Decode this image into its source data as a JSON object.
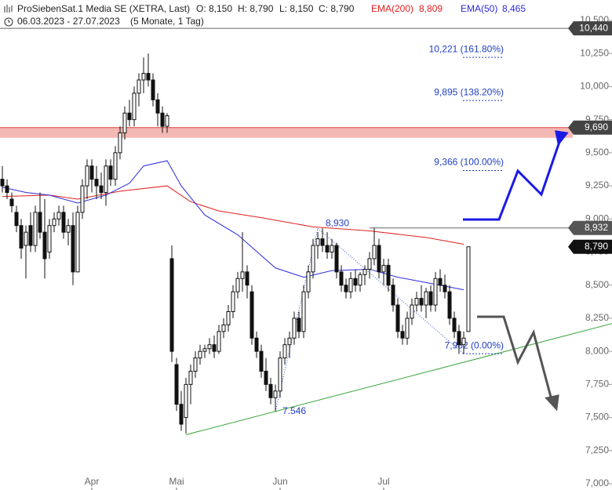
{
  "header": {
    "title": "ProSiebenSat.1 Media SE (XETRA, Last)",
    "open": "O: 8,150",
    "high": "H: 8,790",
    "low": "L: 8,150",
    "close": "C: 8,790",
    "ema200_value": "8,809",
    "ema50_value": "8,465",
    "period": "06.03.2023 - 27.07.2023",
    "span": "(5 Monate, 1 Tag)"
  },
  "chart_data": {
    "type": "candlestick",
    "xlim": [
      -0.5,
      129.5
    ],
    "ylim": [
      7.0,
      10.5
    ],
    "xticks": [
      {
        "value": 19,
        "label": "Apr"
      },
      {
        "value": 37,
        "label": "Mai"
      },
      {
        "value": 59,
        "label": "Jun"
      },
      {
        "value": 81,
        "label": "Jul"
      }
    ],
    "yticks": [
      {
        "value": 7.0,
        "label": "7,000"
      },
      {
        "value": 7.25,
        "label": "7,250"
      },
      {
        "value": 7.5,
        "label": "7,500"
      },
      {
        "value": 7.75,
        "label": "7,750"
      },
      {
        "value": 8.0,
        "label": "8,000"
      },
      {
        "value": 8.25,
        "label": "8,250"
      },
      {
        "value": 8.5,
        "label": "8,500"
      },
      {
        "value": 8.75,
        "label": "8,750"
      },
      {
        "value": 9.0,
        "label": "9,000"
      },
      {
        "value": 9.25,
        "label": "9,250"
      },
      {
        "value": 9.5,
        "label": "9,500"
      },
      {
        "value": 9.75,
        "label": "9,750"
      },
      {
        "value": 10.0,
        "label": "10,000"
      },
      {
        "value": 10.25,
        "label": "10,250"
      },
      {
        "value": 10.5,
        "label": "10,500"
      }
    ],
    "candles": [
      [
        9.3,
        9.4,
        9.2,
        9.25
      ],
      [
        9.25,
        9.3,
        9.15,
        9.2
      ],
      [
        9.15,
        9.2,
        9.05,
        9.1
      ],
      [
        9.05,
        9.1,
        8.9,
        8.95
      ],
      [
        8.95,
        9.0,
        8.7,
        8.78
      ],
      [
        8.8,
        8.95,
        8.55,
        8.9
      ],
      [
        8.95,
        9.05,
        8.75,
        8.8
      ],
      [
        8.8,
        9.1,
        8.75,
        9.05
      ],
      [
        9.05,
        9.2,
        8.85,
        8.9
      ],
      [
        8.9,
        9.15,
        8.55,
        8.7
      ],
      [
        8.75,
        9.0,
        8.7,
        8.95
      ],
      [
        8.95,
        9.05,
        8.9,
        9.0
      ],
      [
        9.0,
        9.1,
        8.95,
        9.05
      ],
      [
        9.05,
        9.1,
        8.85,
        8.9
      ],
      [
        8.9,
        9.0,
        8.8,
        8.95
      ],
      [
        8.95,
        9.05,
        8.5,
        8.6
      ],
      [
        8.6,
        9.1,
        8.6,
        9.05
      ],
      [
        9.05,
        9.3,
        9.0,
        9.25
      ],
      [
        9.25,
        9.45,
        9.15,
        9.4
      ],
      [
        9.4,
        9.45,
        9.2,
        9.3
      ],
      [
        9.3,
        9.4,
        9.15,
        9.25
      ],
      [
        9.25,
        9.35,
        9.15,
        9.2
      ],
      [
        9.2,
        9.45,
        9.1,
        9.4
      ],
      [
        9.4,
        9.45,
        9.25,
        9.3
      ],
      [
        9.3,
        9.55,
        9.25,
        9.5
      ],
      [
        9.5,
        9.7,
        9.45,
        9.65
      ],
      [
        9.65,
        9.85,
        9.6,
        9.8
      ],
      [
        9.8,
        9.9,
        9.7,
        9.75
      ],
      [
        9.75,
        10.0,
        9.7,
        9.95
      ],
      [
        9.95,
        10.1,
        9.85,
        10.05
      ],
      [
        10.05,
        10.22,
        9.95,
        10.1
      ],
      [
        10.1,
        10.25,
        10.0,
        10.05
      ],
      [
        10.05,
        10.1,
        9.85,
        9.9
      ],
      [
        9.9,
        9.95,
        9.7,
        9.8
      ],
      [
        9.8,
        9.85,
        9.65,
        9.7
      ],
      [
        9.7,
        9.8,
        9.65,
        9.78
      ],
      [
        8.7,
        8.8,
        7.92,
        8.0
      ],
      [
        7.9,
        7.95,
        7.55,
        7.6
      ],
      [
        7.6,
        7.7,
        7.4,
        7.45
      ],
      [
        7.5,
        7.8,
        7.38,
        7.75
      ],
      [
        7.75,
        7.9,
        7.6,
        7.85
      ],
      [
        7.85,
        8.0,
        7.8,
        7.95
      ],
      [
        7.95,
        8.05,
        7.9,
        8.0
      ],
      [
        8.0,
        8.05,
        7.95,
        8.02
      ],
      [
        8.02,
        8.1,
        7.98,
        8.05
      ],
      [
        8.05,
        8.12,
        7.95,
        8.0
      ],
      [
        8.0,
        8.2,
        7.98,
        8.15
      ],
      [
        8.15,
        8.25,
        8.1,
        8.2
      ],
      [
        8.2,
        8.35,
        8.15,
        8.3
      ],
      [
        8.3,
        8.5,
        8.25,
        8.45
      ],
      [
        8.45,
        8.6,
        8.4,
        8.55
      ],
      [
        8.55,
        8.9,
        8.45,
        8.6
      ],
      [
        8.6,
        8.65,
        8.4,
        8.5
      ],
      [
        8.45,
        8.5,
        8.05,
        8.1
      ],
      [
        8.1,
        8.15,
        7.95,
        8.0
      ],
      [
        8.0,
        8.05,
        7.8,
        7.85
      ],
      [
        7.85,
        7.95,
        7.7,
        7.75
      ],
      [
        7.75,
        7.8,
        7.6,
        7.65
      ],
      [
        7.65,
        7.75,
        7.546,
        7.7
      ],
      [
        7.7,
        8.0,
        7.65,
        7.95
      ],
      [
        7.95,
        8.1,
        7.9,
        8.05
      ],
      [
        8.05,
        8.15,
        7.95,
        8.1
      ],
      [
        8.1,
        8.3,
        8.05,
        8.25
      ],
      [
        8.25,
        8.3,
        8.1,
        8.15
      ],
      [
        8.15,
        8.5,
        8.1,
        8.45
      ],
      [
        8.45,
        8.65,
        8.4,
        8.6
      ],
      [
        8.6,
        8.85,
        8.55,
        8.8
      ],
      [
        8.8,
        8.9,
        8.7,
        8.85
      ],
      [
        8.85,
        8.93,
        8.75,
        8.8
      ],
      [
        8.8,
        8.9,
        8.7,
        8.75
      ],
      [
        8.75,
        8.85,
        8.7,
        8.8
      ],
      [
        8.8,
        8.82,
        8.55,
        8.6
      ],
      [
        8.6,
        8.65,
        8.45,
        8.5
      ],
      [
        8.5,
        8.55,
        8.4,
        8.45
      ],
      [
        8.45,
        8.6,
        8.4,
        8.55
      ],
      [
        8.55,
        8.62,
        8.45,
        8.5
      ],
      [
        8.5,
        8.6,
        8.45,
        8.58
      ],
      [
        8.58,
        8.65,
        8.5,
        8.62
      ],
      [
        8.62,
        8.75,
        8.55,
        8.7
      ],
      [
        8.7,
        8.93,
        8.65,
        8.8
      ],
      [
        8.8,
        8.85,
        8.55,
        8.6
      ],
      [
        8.6,
        8.7,
        8.5,
        8.65
      ],
      [
        8.65,
        8.7,
        8.45,
        8.5
      ],
      [
        8.5,
        8.55,
        8.3,
        8.35
      ],
      [
        8.35,
        8.4,
        8.1,
        8.15
      ],
      [
        8.15,
        8.2,
        8.05,
        8.1
      ],
      [
        8.1,
        8.3,
        8.05,
        8.25
      ],
      [
        8.25,
        8.4,
        8.2,
        8.35
      ],
      [
        8.35,
        8.45,
        8.3,
        8.4
      ],
      [
        8.4,
        8.5,
        8.3,
        8.35
      ],
      [
        8.35,
        8.48,
        8.25,
        8.45
      ],
      [
        8.45,
        8.5,
        8.3,
        8.35
      ],
      [
        8.35,
        8.6,
        8.3,
        8.55
      ],
      [
        8.55,
        8.62,
        8.45,
        8.5
      ],
      [
        8.5,
        8.58,
        8.4,
        8.45
      ],
      [
        8.45,
        8.5,
        8.2,
        8.25
      ],
      [
        8.25,
        8.3,
        8.1,
        8.15
      ],
      [
        8.15,
        8.2,
        7.98,
        8.05
      ],
      [
        8.05,
        8.15,
        7.98,
        8.1
      ],
      [
        8.15,
        8.79,
        8.15,
        8.79
      ]
    ],
    "series": [
      {
        "name": "EMA(200)",
        "color": "#e0201e",
        "x": [
          0,
          10,
          16,
          25,
          35,
          40,
          46,
          55,
          66,
          78,
          90,
          98
        ],
        "values": [
          9.17,
          9.18,
          9.15,
          9.21,
          9.25,
          9.13,
          9.06,
          9.01,
          8.94,
          8.91,
          8.86,
          8.809
        ]
      },
      {
        "name": "EMA(50)",
        "color": "#2b2bdc",
        "x": [
          0,
          5,
          10,
          16,
          22,
          27,
          30,
          35,
          38,
          43,
          50,
          58,
          64,
          70,
          78,
          84,
          90,
          98
        ],
        "values": [
          9.24,
          9.2,
          9.18,
          9.12,
          9.18,
          9.27,
          9.4,
          9.44,
          9.25,
          9.03,
          8.88,
          8.63,
          8.56,
          8.61,
          8.62,
          8.56,
          8.52,
          8.465
        ]
      }
    ],
    "levels": [
      {
        "value": 10.44,
        "label": "10,440",
        "color": "#666666",
        "box": "#444444",
        "from": -0.5
      },
      {
        "value": 9.69,
        "label": "9,690",
        "color": "#d84040",
        "box": "#444444",
        "from": -0.5,
        "band": true
      },
      {
        "value": 8.932,
        "label": "8,932",
        "color": "#666666",
        "box": "#555555",
        "from": 78
      },
      {
        "value": 8.79,
        "label": "8,790",
        "color": "#111111",
        "box": "#111111"
      }
    ],
    "fib_levels": [
      {
        "value": 10.221,
        "label": "10,221 (161.80%)"
      },
      {
        "value": 9.895,
        "label": "9,895 (138.20%)"
      },
      {
        "value": 9.366,
        "label": "9,366 (100.00%)"
      },
      {
        "value": 7.982,
        "label": "7,982 (0.00%)"
      }
    ],
    "fib_path": {
      "x": [
        58,
        67,
        98
      ],
      "values": [
        7.546,
        8.93,
        7.982
      ],
      "labels": [
        "7.546",
        "8,930",
        null
      ]
    },
    "trendline": {
      "x": [
        39,
        129.5
      ],
      "values": [
        7.37,
        8.21
      ],
      "color": "#3aa43a"
    }
  }
}
